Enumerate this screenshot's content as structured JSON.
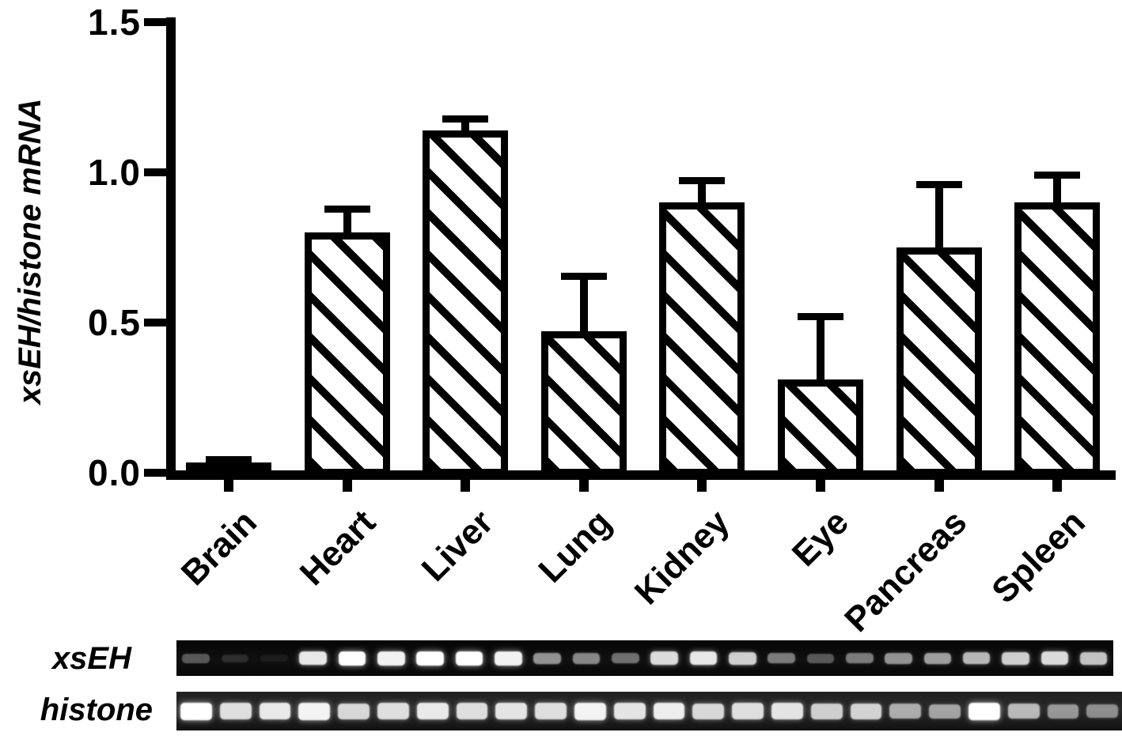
{
  "figure": {
    "background": "#ffffff",
    "ink": "#000000",
    "kind": "tissue expression bar chart with RT-PCR gel panels"
  },
  "chart_data": {
    "type": "bar",
    "title": "",
    "ylabel": "xsEH/histone mRNA",
    "xlabel": "",
    "ylim": [
      0,
      1.5
    ],
    "yticks": [
      0,
      0.5,
      1.0,
      1.5
    ],
    "ytick_labels": [
      "0.0",
      "0.5",
      "1.0",
      "1.5"
    ],
    "categories": [
      "Brain",
      "Heart",
      "Liver",
      "Lung",
      "Kidney",
      "Eye",
      "Pancreas",
      "Spleen"
    ],
    "values": [
      0.034,
      0.8,
      1.14,
      0.47,
      0.9,
      0.31,
      0.75,
      0.9
    ],
    "errors_upper": [
      0.011,
      0.08,
      0.04,
      0.185,
      0.073,
      0.21,
      0.21,
      0.093
    ],
    "error_style": "upper SEM whisker with cap",
    "bar_fill": "white with black diagonal hatch",
    "bar_edge_color": "#000000",
    "grid": false,
    "legend": false,
    "category_label_rotation_deg": -45
  },
  "gels": {
    "lanes_per_tissue": 3,
    "rows": [
      {
        "label": "xsEH",
        "band_intensities": [
          0.3,
          0.12,
          0.05,
          0.9,
          1.0,
          0.95,
          1.0,
          1.0,
          0.95,
          0.55,
          0.5,
          0.4,
          0.85,
          0.9,
          0.8,
          0.45,
          0.3,
          0.45,
          0.55,
          0.6,
          0.7,
          0.8,
          0.85,
          0.75
        ]
      },
      {
        "label": "histone",
        "band_intensities": [
          1.0,
          0.85,
          0.9,
          0.95,
          0.82,
          0.85,
          0.9,
          0.85,
          0.88,
          0.85,
          0.95,
          0.88,
          0.92,
          0.82,
          0.85,
          0.88,
          0.78,
          0.8,
          0.62,
          0.58,
          1.0,
          0.68,
          0.52,
          0.48
        ]
      }
    ]
  }
}
